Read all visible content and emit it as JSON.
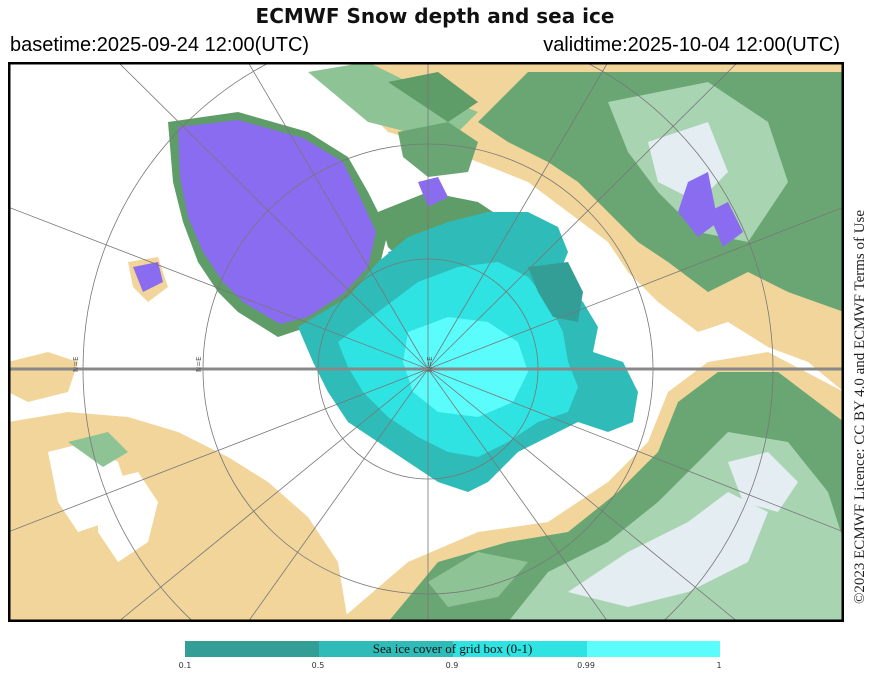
{
  "header": {
    "title": "ECMWF Snow depth and sea ice",
    "basetime": "basetime:2025-09-24 12:00(UTC)",
    "validtime": "validtime:2025-10-04 12:00(UTC)"
  },
  "licence": "©2023 ECMWF Licence: CC BY 4.0 and ECMWF Terms of Use",
  "map": {
    "projection": "north-polar-stereographic",
    "center_label": "N=E",
    "meridian_label_a": "N=E",
    "meridian_label_b": "N=E"
  },
  "legend": {
    "label": "Sea ice cover of grid box (0-1)",
    "ticks": [
      "0.1",
      "0.5",
      "0.9",
      "0.99",
      "1"
    ],
    "colors": [
      "#339e96",
      "#2fbcb8",
      "#2fe3e3",
      "#5afcfc"
    ]
  },
  "colors": {
    "land": "#f2d59b",
    "snow_low": "#5e9c68",
    "snow_mid": "#a9d4b2",
    "snow_deep": "#e4eef2",
    "ice_sheet": "#8a6cf0",
    "ocean": "#ffffff"
  }
}
